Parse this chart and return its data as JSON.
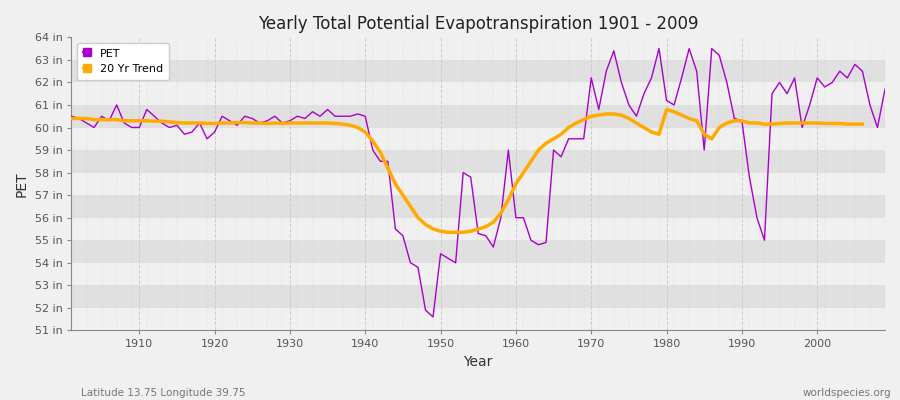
{
  "title": "Yearly Total Potential Evapotranspiration 1901 - 2009",
  "xlabel": "Year",
  "ylabel": "PET",
  "bottom_left_label": "Latitude 13.75 Longitude 39.75",
  "bottom_right_label": "worldspecies.org",
  "background_color": "#f0f0f0",
  "plot_background_color": "#e8e8e8",
  "band_color_light": "#f0f0f0",
  "band_color_dark": "#e0e0e0",
  "pet_color": "#aa00cc",
  "trend_color": "#ffaa00",
  "ylim": [
    51,
    64
  ],
  "xlim": [
    1901,
    2009
  ],
  "years": [
    1901,
    1902,
    1903,
    1904,
    1905,
    1906,
    1907,
    1908,
    1909,
    1910,
    1911,
    1912,
    1913,
    1914,
    1915,
    1916,
    1917,
    1918,
    1919,
    1920,
    1921,
    1922,
    1923,
    1924,
    1925,
    1926,
    1927,
    1928,
    1929,
    1930,
    1931,
    1932,
    1933,
    1934,
    1935,
    1936,
    1937,
    1938,
    1939,
    1940,
    1941,
    1942,
    1943,
    1944,
    1945,
    1946,
    1947,
    1948,
    1949,
    1950,
    1951,
    1952,
    1953,
    1954,
    1955,
    1956,
    1957,
    1958,
    1959,
    1960,
    1961,
    1962,
    1963,
    1964,
    1965,
    1966,
    1967,
    1968,
    1969,
    1970,
    1971,
    1972,
    1973,
    1974,
    1975,
    1976,
    1977,
    1978,
    1979,
    1980,
    1981,
    1982,
    1983,
    1984,
    1985,
    1986,
    1987,
    1988,
    1989,
    1990,
    1991,
    1992,
    1993,
    1994,
    1995,
    1996,
    1997,
    1998,
    1999,
    2000,
    2001,
    2002,
    2003,
    2004,
    2005,
    2006,
    2007,
    2008,
    2009
  ],
  "pet_values": [
    60.5,
    60.4,
    60.2,
    60.0,
    60.5,
    60.3,
    61.0,
    60.2,
    60.0,
    60.0,
    60.8,
    60.5,
    60.2,
    60.0,
    60.1,
    59.7,
    59.8,
    60.2,
    59.5,
    59.8,
    60.5,
    60.3,
    60.1,
    60.5,
    60.4,
    60.2,
    60.3,
    60.5,
    60.2,
    60.3,
    60.5,
    60.4,
    60.7,
    60.5,
    60.8,
    60.5,
    60.5,
    60.5,
    60.6,
    60.5,
    59.0,
    58.5,
    58.5,
    55.5,
    55.2,
    54.0,
    53.8,
    51.9,
    51.6,
    54.4,
    54.2,
    54.0,
    58.0,
    57.8,
    55.3,
    55.2,
    54.7,
    56.0,
    59.0,
    56.0,
    56.0,
    55.0,
    54.8,
    54.9,
    59.0,
    58.7,
    59.5,
    59.5,
    59.5,
    62.2,
    60.8,
    62.5,
    63.4,
    62.0,
    61.0,
    60.5,
    61.5,
    62.2,
    63.5,
    61.2,
    61.0,
    62.2,
    63.5,
    62.5,
    59.0,
    63.5,
    63.2,
    62.0,
    60.4,
    60.3,
    57.8,
    56.0,
    55.0,
    61.5,
    62.0,
    61.5,
    62.2,
    60.0,
    61.0,
    62.2,
    61.8,
    62.0,
    62.5,
    62.2,
    62.8,
    62.5,
    61.0,
    60.0,
    61.7
  ],
  "trend_values": [
    60.4,
    60.4,
    60.4,
    60.35,
    60.35,
    60.35,
    60.35,
    60.3,
    60.3,
    60.3,
    60.3,
    60.28,
    60.28,
    60.25,
    60.22,
    60.2,
    60.2,
    60.2,
    60.18,
    60.18,
    60.2,
    60.2,
    60.22,
    60.22,
    60.2,
    60.2,
    60.18,
    60.2,
    60.18,
    60.2,
    60.2,
    60.2,
    60.2,
    60.2,
    60.2,
    60.18,
    60.15,
    60.1,
    60.0,
    59.8,
    59.4,
    58.9,
    58.2,
    57.5,
    57.0,
    56.5,
    56.0,
    55.7,
    55.5,
    55.4,
    55.35,
    55.35,
    55.35,
    55.4,
    55.5,
    55.6,
    55.8,
    56.2,
    56.8,
    57.5,
    58.0,
    58.5,
    59.0,
    59.3,
    59.5,
    59.7,
    60.0,
    60.2,
    60.35,
    60.5,
    60.55,
    60.6,
    60.6,
    60.55,
    60.4,
    60.2,
    60.0,
    59.8,
    59.7,
    60.8,
    60.7,
    60.55,
    60.4,
    60.3,
    59.7,
    59.5,
    60.0,
    60.2,
    60.3,
    60.3,
    60.2,
    60.2,
    60.15,
    60.15,
    60.18,
    60.2,
    60.2,
    60.2,
    60.2,
    60.2,
    60.18,
    60.18,
    60.18,
    60.15,
    60.15,
    60.15,
    null,
    null,
    null
  ]
}
